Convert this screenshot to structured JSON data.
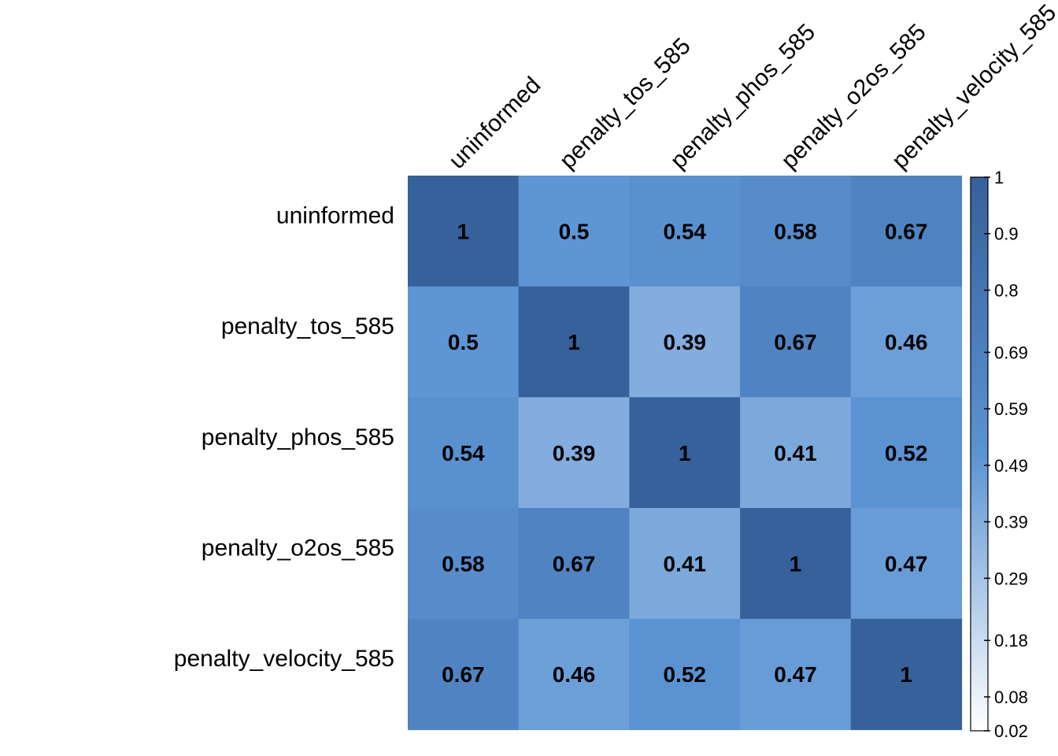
{
  "chart_data": {
    "type": "heatmap",
    "title": "",
    "xlabel": "",
    "ylabel": "",
    "columns": [
      "uninformed",
      "penalty_tos_585",
      "penalty_phos_585",
      "penalty_o2os_585",
      "penalty_velocity_585"
    ],
    "rows": [
      "uninformed",
      "penalty_tos_585",
      "penalty_phos_585",
      "penalty_o2os_585",
      "penalty_velocity_585"
    ],
    "values": [
      [
        1,
        0.5,
        0.54,
        0.58,
        0.67
      ],
      [
        0.5,
        1,
        0.39,
        0.67,
        0.46
      ],
      [
        0.54,
        0.39,
        1,
        0.41,
        0.52
      ],
      [
        0.58,
        0.67,
        0.41,
        1,
        0.47
      ],
      [
        0.67,
        0.46,
        0.52,
        0.47,
        1
      ]
    ],
    "color_range": [
      0.02,
      1
    ],
    "colors": {
      "low": "#ffffff",
      "mid": "#5b93d3",
      "high": "#36619b"
    },
    "legend": {
      "placement": "right",
      "ticks": [
        "1",
        "0.9",
        "0.8",
        "0.69",
        "0.59",
        "0.49",
        "0.39",
        "0.29",
        "0.18",
        "0.08",
        "0.02"
      ],
      "tick_values": [
        1,
        0.9,
        0.8,
        0.69,
        0.59,
        0.49,
        0.39,
        0.29,
        0.18,
        0.08,
        0.02
      ]
    },
    "grid": false
  }
}
